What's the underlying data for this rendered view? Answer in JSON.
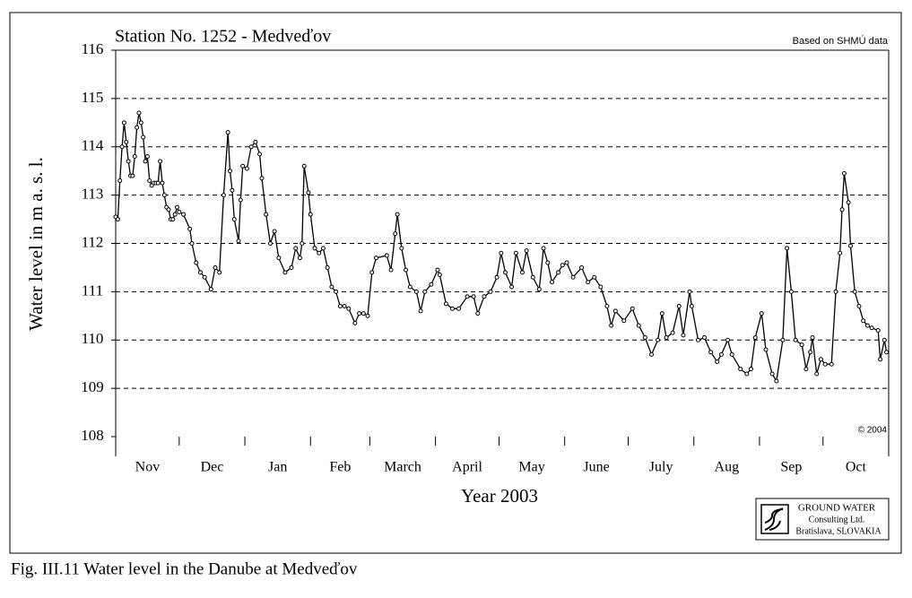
{
  "chart_data": {
    "type": "line",
    "title": "Station No. 1252 - Medveďov",
    "source": "Based on SHMÚ data",
    "copyright": "© 2004",
    "y_label": "Water level in m a. s. l.",
    "x_label": "Year 2003",
    "logo": [
      "GROUND WATER",
      "Consulting Ltd.",
      "Bratislava, SLOVAKIA"
    ],
    "caption": "Fig. III.11  Water level in the Danube at Medveďov",
    "color": "#000000",
    "grid": true,
    "ylim": [
      108,
      116
    ],
    "yticks": [
      108,
      109,
      110,
      111,
      112,
      113,
      114,
      115,
      116
    ],
    "xlim": [
      0,
      365
    ],
    "xticks": [
      0,
      30,
      61,
      92,
      120,
      151,
      181,
      212,
      242,
      273,
      304,
      334,
      365
    ],
    "months": [
      "Nov",
      "Dec",
      "Jan",
      "Feb",
      "March",
      "April",
      "May",
      "June",
      "July",
      "Aug",
      "Sep",
      "Oct"
    ],
    "x": [
      0,
      1,
      2,
      3,
      4,
      5,
      6,
      7,
      8,
      9,
      10,
      11,
      12,
      13,
      14,
      15,
      16,
      17,
      18,
      19,
      20,
      21,
      22,
      23,
      24,
      25,
      26,
      27,
      28,
      29,
      30,
      32,
      35,
      36,
      38,
      40,
      42,
      45,
      47,
      49,
      51,
      53,
      54,
      55,
      56,
      58,
      59,
      60,
      62,
      64,
      66,
      68,
      69,
      71,
      73,
      75,
      77,
      80,
      83,
      85,
      87,
      88,
      89,
      91,
      92,
      94,
      96,
      98,
      100,
      102,
      104,
      106,
      108,
      110,
      113,
      115,
      117,
      119,
      121,
      123,
      128,
      130,
      132,
      133,
      135,
      137,
      139,
      142,
      144,
      146,
      149,
      152,
      153,
      156,
      159,
      162,
      166,
      169,
      171,
      174,
      177,
      180,
      182,
      184,
      187,
      189,
      192,
      194,
      197,
      200,
      202,
      204,
      206,
      209,
      211,
      213,
      216,
      220,
      223,
      226,
      229,
      232,
      234,
      236,
      240,
      244,
      247,
      250,
      253,
      256,
      258,
      260,
      263,
      266,
      268,
      271,
      272,
      275,
      278,
      281,
      284,
      286,
      289,
      291,
      295,
      298,
      300,
      302,
      305,
      307,
      310,
      312,
      315,
      317,
      319,
      321,
      324,
      326,
      328,
      329,
      331,
      333,
      335,
      338,
      340,
      342,
      343,
      344,
      346,
      347,
      349,
      351,
      353,
      355,
      357,
      360,
      361,
      363,
      364
    ],
    "values": [
      112.55,
      112.5,
      113.3,
      114.0,
      114.5,
      114.1,
      113.7,
      113.4,
      113.4,
      113.8,
      114.4,
      114.7,
      114.5,
      114.2,
      113.7,
      113.8,
      113.3,
      113.2,
      113.25,
      113.25,
      113.25,
      113.7,
      113.25,
      113.0,
      112.75,
      112.7,
      112.5,
      112.5,
      112.6,
      112.75,
      112.65,
      112.6,
      112.3,
      112.0,
      111.6,
      111.4,
      111.3,
      111.05,
      111.5,
      111.4,
      113.0,
      114.3,
      113.5,
      113.1,
      112.5,
      112.05,
      112.9,
      113.6,
      113.55,
      114.0,
      114.1,
      113.85,
      113.35,
      112.6,
      112.0,
      112.25,
      111.7,
      111.4,
      111.5,
      111.9,
      111.7,
      112.0,
      113.6,
      113.05,
      112.6,
      111.9,
      111.8,
      111.9,
      111.5,
      111.1,
      111.0,
      110.7,
      110.7,
      110.65,
      110.35,
      110.55,
      110.55,
      110.5,
      111.4,
      111.7,
      111.75,
      111.45,
      112.2,
      112.6,
      111.9,
      111.45,
      111.1,
      111.0,
      110.6,
      111.0,
      111.15,
      111.45,
      111.35,
      110.75,
      110.65,
      110.65,
      110.9,
      110.9,
      110.55,
      110.9,
      111.0,
      111.3,
      111.8,
      111.4,
      111.1,
      111.8,
      111.4,
      111.85,
      111.3,
      111.05,
      111.9,
      111.6,
      111.2,
      111.4,
      111.55,
      111.6,
      111.3,
      111.5,
      111.2,
      111.3,
      111.1,
      110.7,
      110.3,
      110.6,
      110.4,
      110.65,
      110.3,
      110.05,
      109.7,
      110.0,
      110.55,
      110.05,
      110.15,
      110.7,
      110.1,
      111.0,
      110.7,
      110.0,
      110.05,
      109.75,
      109.55,
      109.7,
      110.0,
      109.7,
      109.4,
      109.3,
      109.4,
      110.05,
      110.55,
      109.8,
      109.3,
      109.15,
      110.0,
      111.9,
      111.0,
      110.0,
      109.9,
      109.4,
      109.75,
      110.05,
      109.3,
      109.6,
      109.5,
      109.5,
      111.0,
      111.8,
      112.7,
      113.45,
      112.85,
      111.95,
      111.0,
      110.7,
      110.4,
      110.3,
      110.25,
      110.2,
      109.6,
      110.0,
      109.75
    ]
  }
}
